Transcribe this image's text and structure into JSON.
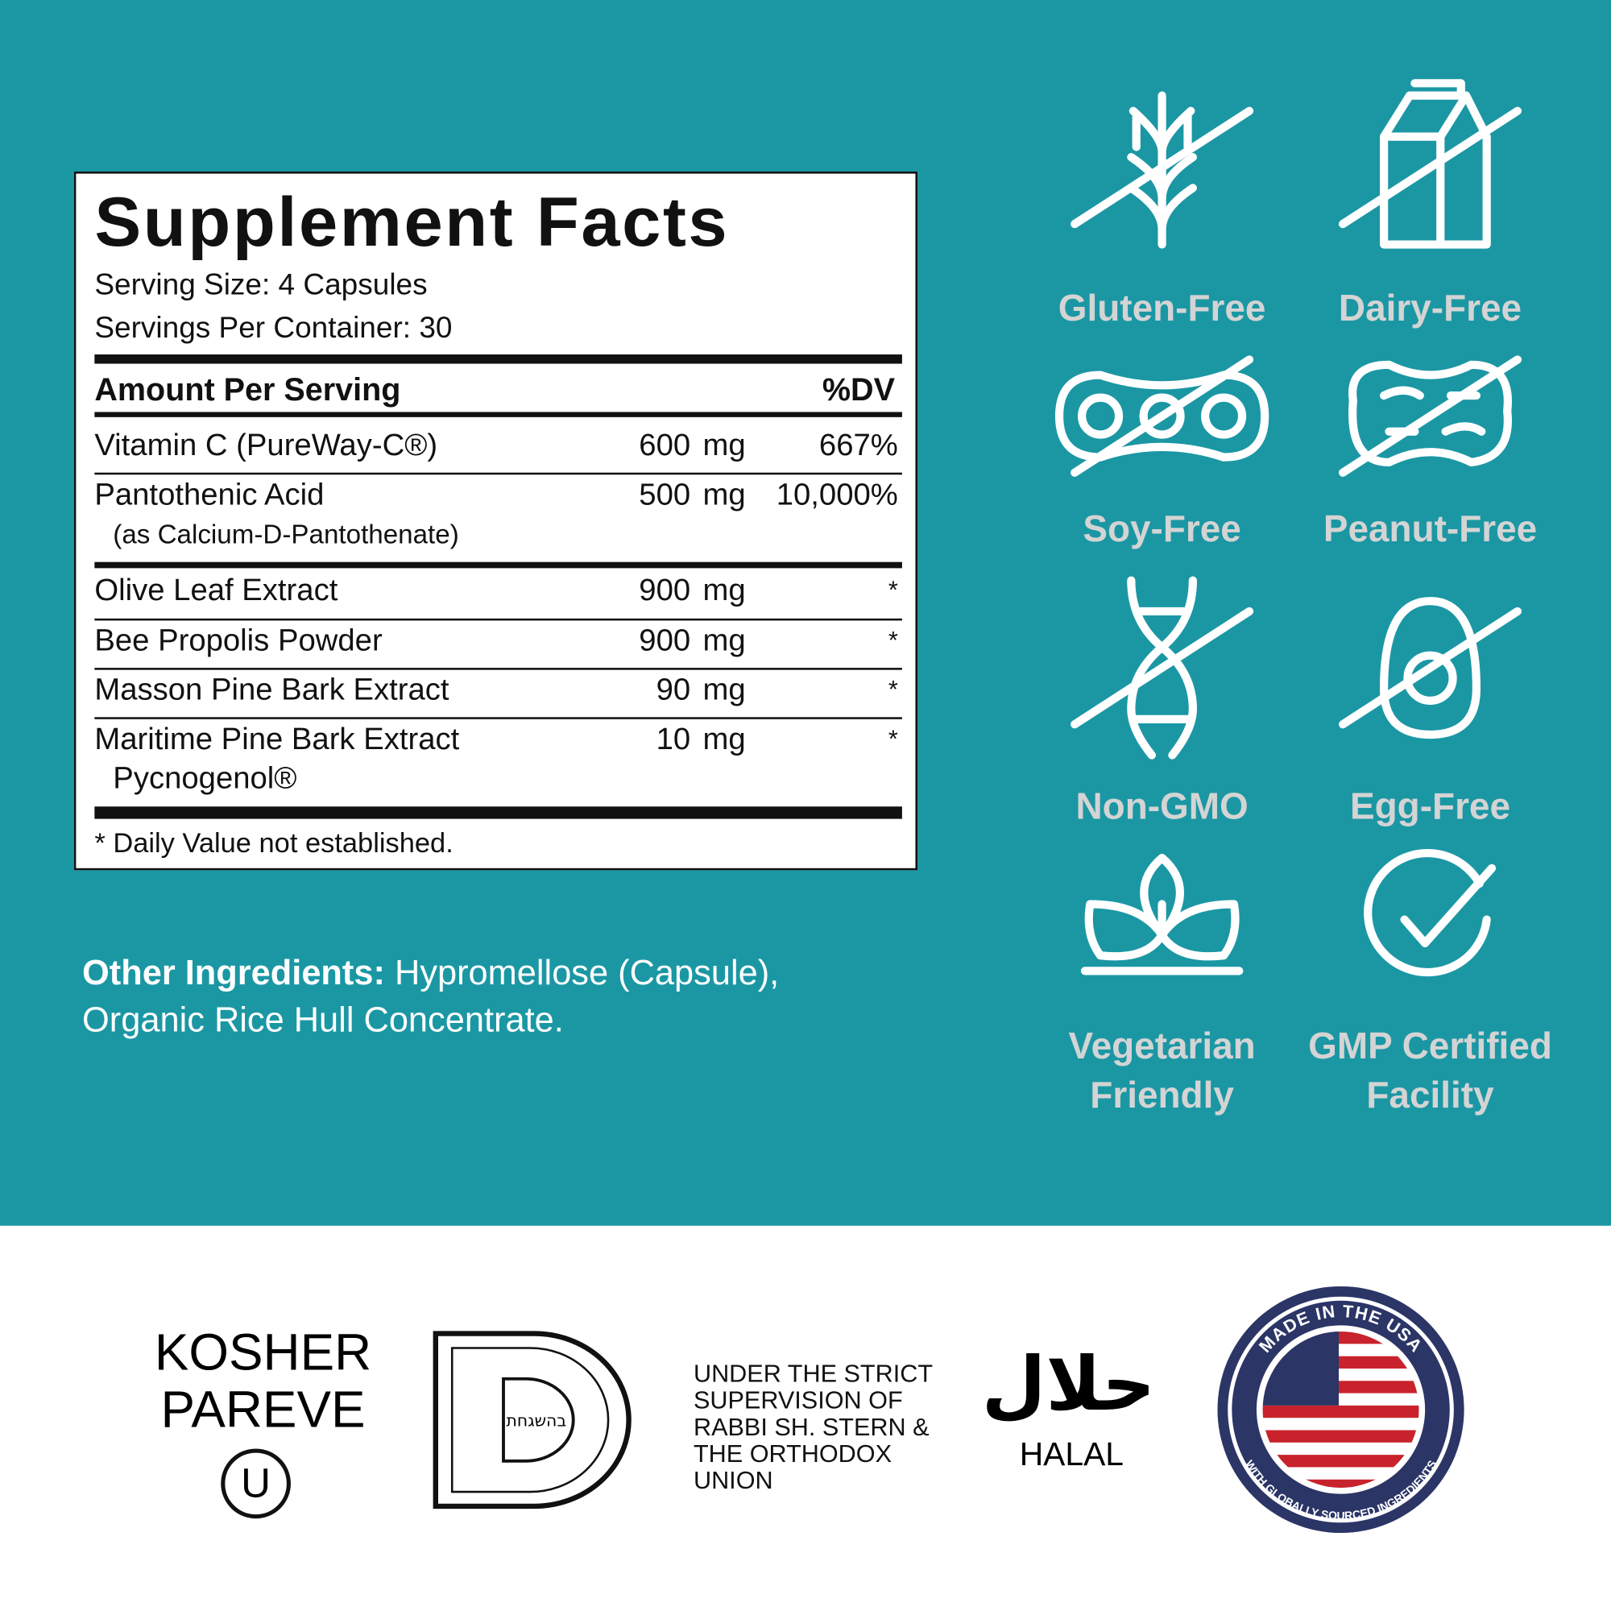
{
  "supplement_facts": {
    "title": "Supplement Facts",
    "serving_size": "Serving Size: 4 Capsules",
    "servings_per_container": "Servings Per Container: 30",
    "header": {
      "amount": "Amount Per Serving",
      "dv": "%DV"
    },
    "rows": [
      {
        "name": "Vitamin C (PureWay-C®)",
        "amount": "600",
        "unit": "mg",
        "dv": "667%"
      },
      {
        "name": "Pantothenic Acid",
        "sub": "(as Calcium-D-Pantothenate)",
        "amount": "500",
        "unit": "mg",
        "dv": "10,000%"
      },
      {
        "name": "Olive Leaf Extract",
        "amount": "900",
        "unit": "mg",
        "dv": "*"
      },
      {
        "name": "Bee Propolis Powder",
        "amount": "900",
        "unit": "mg",
        "dv": "*"
      },
      {
        "name": "Masson Pine Bark Extract",
        "amount": "90",
        "unit": "mg",
        "dv": "*"
      },
      {
        "name": "Maritime Pine Bark Extract",
        "sub": "Pycnogenol®",
        "amount": "10",
        "unit": "mg",
        "dv": "*"
      }
    ],
    "footnote": "* Daily Value not established."
  },
  "other_ingredients": {
    "label": "Other Ingredients:",
    "line1": "Hypromellose (Capsule),",
    "line2": "Organic Rice Hull Concentrate."
  },
  "badges": [
    [
      "Gluten-Free"
    ],
    [
      "Dairy-Free"
    ],
    [
      "Soy-Free"
    ],
    [
      "Peanut-Free"
    ],
    [
      "Non-GMO"
    ],
    [
      "Egg-Free"
    ],
    [
      "Vegetarian",
      "Friendly"
    ],
    [
      "GMP Certified",
      "Facility"
    ]
  ],
  "certifications": {
    "kosher": [
      "KOSHER",
      "PAREVE"
    ],
    "kosher_symbol": "U",
    "seal_text": "בהשגחת",
    "supervision": [
      "UNDER THE STRICT",
      "SUPERVISION OF",
      "RABBI SH. STERN &",
      "THE ORTHODOX",
      "UNION"
    ],
    "halal_arabic": "حلال",
    "halal": "HALAL",
    "usa_top": "MADE IN THE USA",
    "usa_bottom": "WITH GLOBALLY SOURCED INGREDIENTS"
  }
}
